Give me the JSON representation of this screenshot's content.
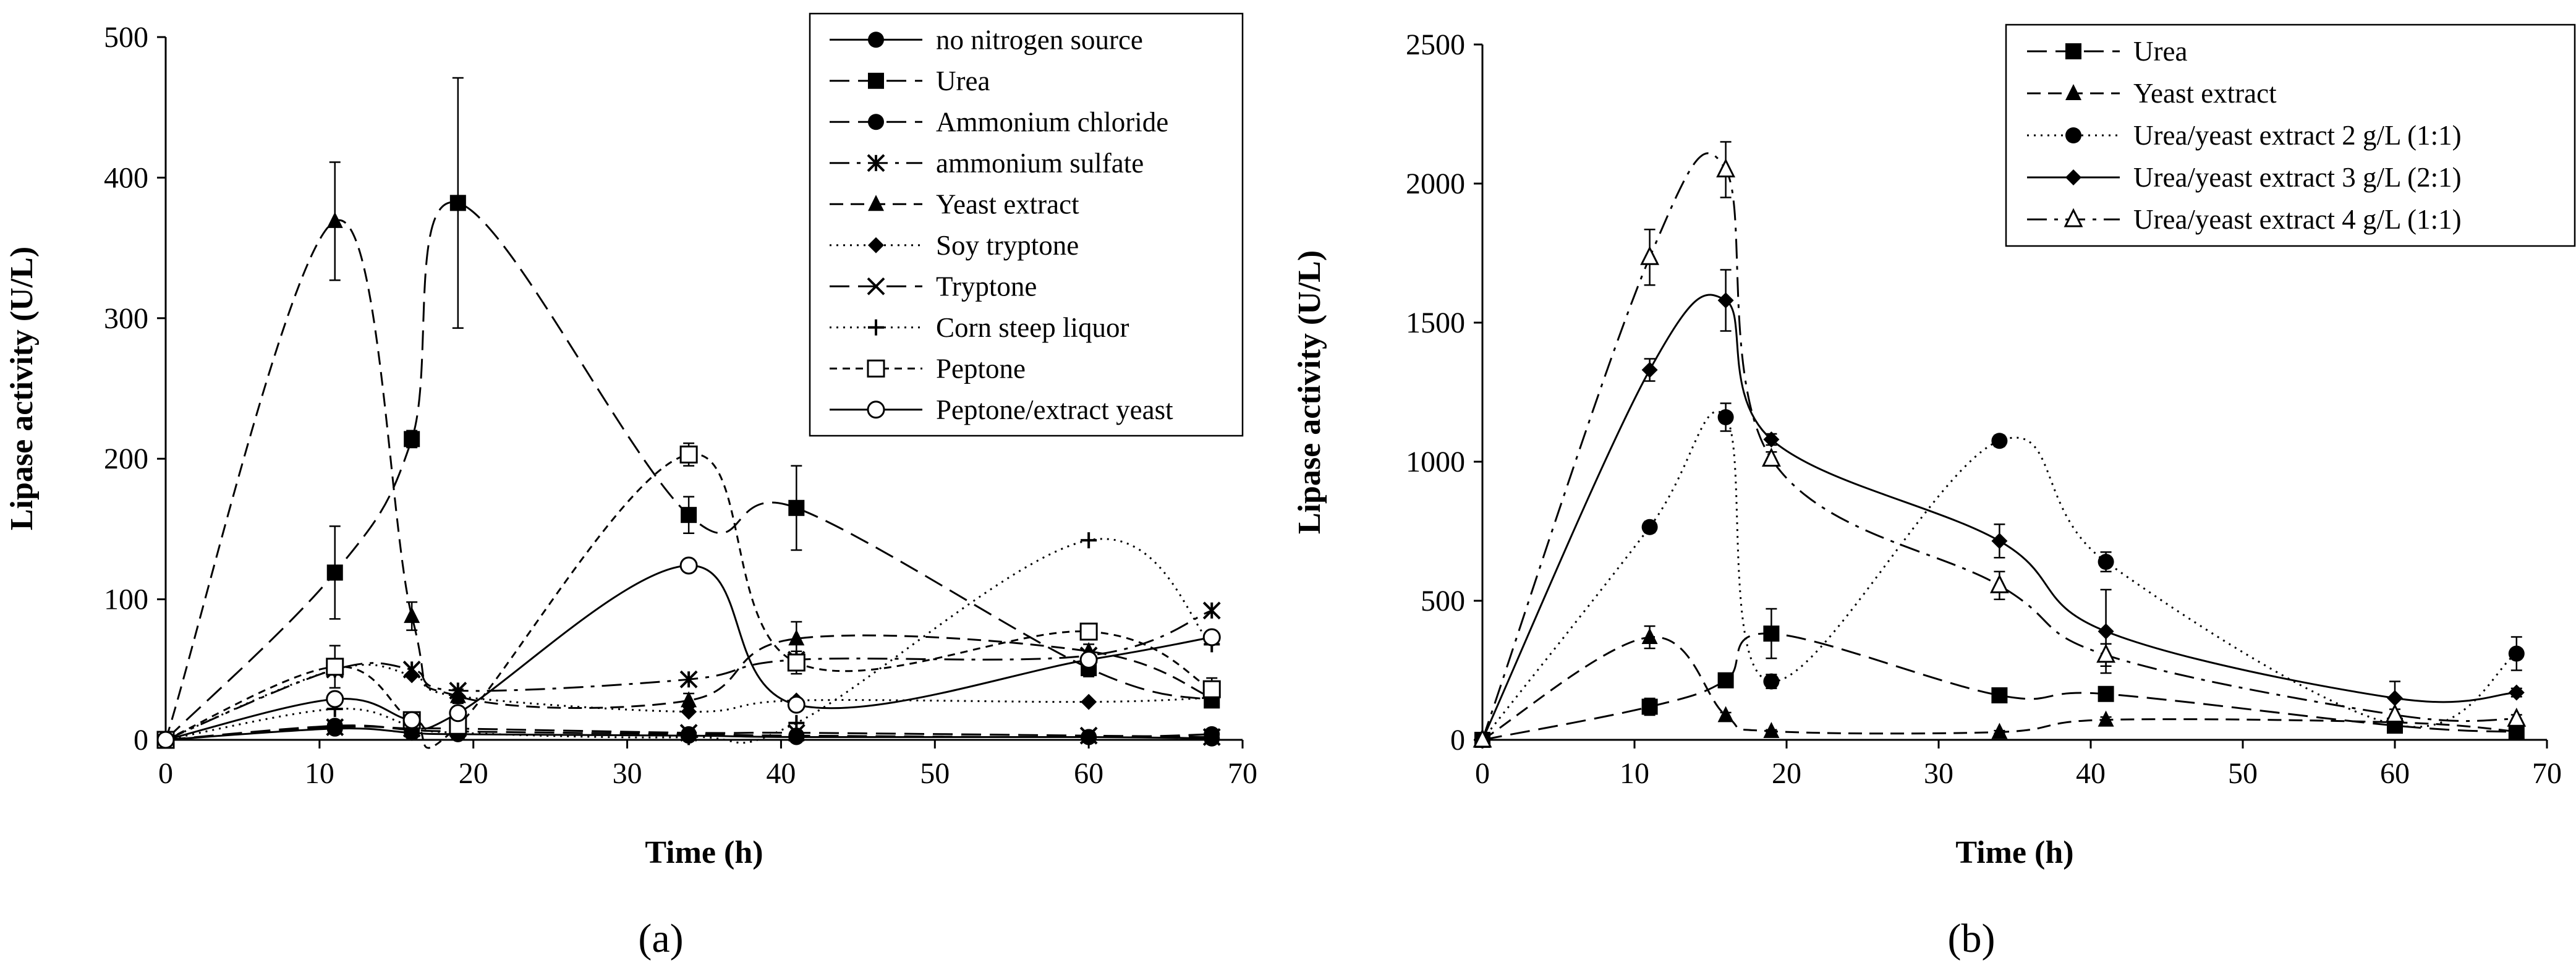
{
  "chart_data": [
    {
      "type": "line",
      "panel_label": "(a)",
      "xlabel": "Time (h)",
      "ylabel": "Lipase activity (U/L)",
      "xlim": [
        0,
        70
      ],
      "ylim": [
        0,
        500
      ],
      "xticks": [
        0,
        10,
        20,
        30,
        40,
        50,
        60,
        70
      ],
      "yticks": [
        0,
        100,
        200,
        300,
        400,
        500
      ],
      "grid": false,
      "legend_position": "top-right",
      "x": [
        0,
        11,
        16,
        19,
        34,
        41,
        60,
        68
      ],
      "series": [
        {
          "name": "no nitrogen source",
          "values": [
            0,
            8,
            5,
            4,
            3,
            2,
            2,
            1
          ],
          "marker": "filled-circle",
          "dash": "solid"
        },
        {
          "name": "Urea",
          "values": [
            0,
            119,
            214,
            382,
            160,
            165,
            51,
            28
          ],
          "errors": [
            0,
            33,
            6,
            89,
            13,
            30,
            6,
            5
          ],
          "marker": "filled-square",
          "dash": "longdash"
        },
        {
          "name": "Ammonium chloride",
          "values": [
            0,
            10,
            7,
            6,
            4,
            3,
            2,
            4
          ],
          "marker": "filled-circle",
          "dash": "longdash"
        },
        {
          "name": "ammonium sulfate",
          "values": [
            0,
            50,
            50,
            35,
            43,
            57,
            60,
            92
          ],
          "marker": "asterisk",
          "dash": "dashdot"
        },
        {
          "name": "Yeast extract",
          "values": [
            0,
            369,
            88,
            31,
            28,
            72,
            63,
            30
          ],
          "errors": [
            0,
            42,
            10,
            5,
            5,
            12,
            5,
            5
          ],
          "marker": "filled-triangle",
          "dash": "dash"
        },
        {
          "name": "Soy tryptone",
          "values": [
            0,
            50,
            46,
            31,
            20,
            28,
            27,
            30
          ],
          "marker": "filled-diamond",
          "dash": "dotted"
        },
        {
          "name": "Tryptone",
          "values": [
            0,
            9,
            8,
            8,
            5,
            5,
            3,
            2
          ],
          "marker": "x",
          "dash": "longdash"
        },
        {
          "name": "Corn steep liquor",
          "values": [
            0,
            22,
            10,
            5,
            2,
            12,
            142,
            68
          ],
          "marker": "plus",
          "dash": "dotted"
        },
        {
          "name": "Peptone",
          "values": [
            0,
            52,
            14,
            10,
            203,
            55,
            77,
            36
          ],
          "errors": [
            0,
            15,
            5,
            3,
            8,
            8,
            5,
            8
          ],
          "marker": "open-square",
          "dash": "shortdash"
        },
        {
          "name": "Peptone/extract yeast",
          "values": [
            0,
            29,
            14,
            19,
            124,
            25,
            57,
            73
          ],
          "marker": "open-circle",
          "dash": "solid"
        }
      ]
    },
    {
      "type": "line",
      "panel_label": "(b)",
      "xlabel": "Time (h)",
      "ylabel": "Lipase activity (U/L)",
      "xlim": [
        0,
        70
      ],
      "ylim": [
        0,
        2500
      ],
      "xticks": [
        0,
        10,
        20,
        30,
        40,
        50,
        60,
        70
      ],
      "yticks": [
        0,
        500,
        1000,
        1500,
        2000,
        2500
      ],
      "grid": false,
      "legend_position": "top-right",
      "x": [
        0,
        11,
        16,
        19,
        34,
        41,
        60,
        68
      ],
      "series": [
        {
          "name": "Urea",
          "values": [
            0,
            119,
            214,
            382,
            160,
            165,
            51,
            28
          ],
          "errors": [
            0,
            30,
            10,
            89,
            10,
            25,
            10,
            5
          ],
          "marker": "filled-square",
          "dash": "longdash"
        },
        {
          "name": "Yeast extract",
          "values": [
            0,
            369,
            88,
            31,
            28,
            72,
            63,
            30
          ],
          "errors": [
            0,
            40,
            10,
            5,
            5,
            10,
            5,
            5
          ],
          "marker": "filled-triangle",
          "dash": "dash"
        },
        {
          "name": "Urea/yeast extract 2 g/L (1:1)",
          "values": [
            0,
            765,
            1160,
            210,
            1075,
            640,
            55,
            310
          ],
          "errors": [
            0,
            20,
            50,
            25,
            20,
            35,
            10,
            60
          ],
          "marker": "filled-circle",
          "dash": "dotted"
        },
        {
          "name": "Urea/yeast extract 3 g/L (2:1)",
          "values": [
            0,
            1330,
            1580,
            1080,
            715,
            390,
            150,
            170
          ],
          "errors": [
            0,
            40,
            110,
            20,
            60,
            150,
            60,
            15
          ],
          "marker": "filled-diamond",
          "dash": "solid"
        },
        {
          "name": "Urea/yeast extract 4 g/L (1:1)",
          "values": [
            0,
            1735,
            2050,
            1010,
            555,
            305,
            90,
            75
          ],
          "errors": [
            0,
            100,
            100,
            25,
            50,
            40,
            20,
            15
          ],
          "marker": "open-triangle",
          "dash": "dashdot"
        }
      ]
    }
  ]
}
